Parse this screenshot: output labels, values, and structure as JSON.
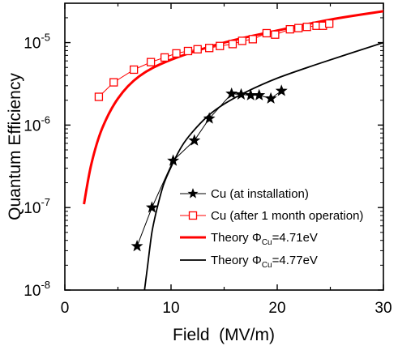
{
  "chart_data": {
    "type": "scatter",
    "title": "",
    "xlabel": "Field  (MV/m)",
    "ylabel": "Quantum Efficiency",
    "x_scale": "linear",
    "y_scale": "log",
    "xlim": [
      0,
      30
    ],
    "ylim": [
      1e-08,
      3e-05
    ],
    "x_ticks": [
      0,
      10,
      20,
      30
    ],
    "x_tick_labels": [
      "0",
      "10",
      "20",
      "30"
    ],
    "y_ticks": [
      {
        "value": 1e-08,
        "base": "10",
        "exp": "-8"
      },
      {
        "value": 1e-07,
        "base": "10",
        "exp": "-7"
      },
      {
        "value": 1e-06,
        "base": "10",
        "exp": "-6"
      },
      {
        "value": 1e-05,
        "base": "10",
        "exp": "-5"
      }
    ],
    "grid": false,
    "legend_position": "bottom-right",
    "series": [
      {
        "name": "Cu (at installation)",
        "kind": "markers+line",
        "marker": "star",
        "color": "#000000",
        "x": [
          6.8,
          8.2,
          10.2,
          12.2,
          13.6,
          15.7,
          16.6,
          17.5,
          18.3,
          19.4,
          20.4
        ],
        "y": [
          3.4e-08,
          1e-07,
          3.7e-07,
          6.5e-07,
          1.2e-06,
          2.4e-06,
          2.35e-06,
          2.3e-06,
          2.3e-06,
          2.1e-06,
          2.6e-06
        ]
      },
      {
        "name": "Cu (after 1 month operation)",
        "kind": "markers+line",
        "marker": "open-square",
        "color": "#ff0000",
        "x": [
          3.2,
          4.6,
          6.5,
          8.1,
          9.4,
          10.5,
          11.6,
          12.5,
          13.6,
          14.6,
          15.8,
          16.7,
          17.7,
          19.0,
          19.8,
          21.2,
          22.0,
          22.8,
          23.7,
          24.3,
          24.9
        ],
        "y": [
          2.2e-06,
          3.3e-06,
          4.7e-06,
          5.8e-06,
          6.6e-06,
          7.4e-06,
          7.9e-06,
          8.3e-06,
          8.6e-06,
          9.1e-06,
          9.6e-06,
          1.05e-05,
          1.1e-05,
          1.3e-05,
          1.25e-05,
          1.45e-05,
          1.5e-05,
          1.55e-05,
          1.6e-05,
          1.6e-05,
          1.7e-05
        ]
      },
      {
        "name_main": "Theory Φ",
        "name_sub": "Cu",
        "name_tail": "=4.71eV",
        "kind": "line",
        "color": "#ff0000",
        "x": [
          1.8,
          2.5,
          3.5,
          5,
          7,
          10,
          15,
          20,
          25,
          30
        ],
        "y": [
          1.1e-07,
          3.4e-07,
          9e-07,
          2.1e-06,
          3.9e-06,
          6.2e-06,
          1e-05,
          1.4e-05,
          1.9e-05,
          2.4e-05
        ]
      },
      {
        "name_main": "Theory Φ",
        "name_sub": "Cu",
        "name_tail": "=4.77eV",
        "kind": "line",
        "color": "#000000",
        "x": [
          7.5,
          7.8,
          8.2,
          8.7,
          9.3,
          10,
          11,
          12,
          13.5,
          15,
          17,
          20,
          24,
          30
        ],
        "y": [
          1e-08,
          2e-08,
          5e-08,
          1e-07,
          1.9e-07,
          3.1e-07,
          5.5e-07,
          8.2e-07,
          1.3e-06,
          1.8e-06,
          2.5e-06,
          3.7e-06,
          5.6e-06,
          1e-05
        ]
      }
    ]
  }
}
